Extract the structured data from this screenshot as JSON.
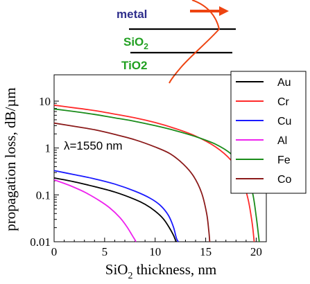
{
  "chart_data": {
    "type": "line",
    "xlabel_main": "SiO",
    "xlabel_sub": "2",
    "xlabel_rest": " thickness, nm",
    "ylabel": "propagation loss, dB/µm",
    "y_scale": "log",
    "xlim": [
      0,
      21
    ],
    "ylim": [
      0.01,
      15
    ],
    "x_ticks": [
      0,
      5,
      10,
      15,
      20
    ],
    "y_ticks": [
      0.01,
      0.1,
      1,
      10
    ],
    "y_tick_labels": [
      "0.01",
      "0.1",
      "1",
      "10"
    ],
    "annotation": "λ=1550 nm",
    "legend_position": "right",
    "series": [
      {
        "name": "Au",
        "color": "#000000",
        "x": [
          0,
          2,
          4,
          6,
          8,
          9,
          10,
          10.8,
          11.4,
          11.8,
          12.0,
          12.1
        ],
        "y": [
          0.23,
          0.19,
          0.15,
          0.115,
          0.08,
          0.063,
          0.045,
          0.031,
          0.02,
          0.014,
          0.011,
          0.01
        ]
      },
      {
        "name": "Cr",
        "color": "#ff2a2a",
        "x": [
          0,
          2,
          4,
          6,
          8,
          10,
          12,
          14,
          16,
          17.5,
          18.5,
          19.2,
          19.6,
          19.8
        ],
        "y": [
          8.2,
          7.2,
          6.3,
          5.3,
          4.4,
          3.5,
          2.6,
          1.8,
          1.05,
          0.55,
          0.25,
          0.08,
          0.025,
          0.01
        ]
      },
      {
        "name": "Cu",
        "color": "#1a1aff",
        "x": [
          0,
          2,
          4,
          6,
          8,
          9.5,
          10.5,
          11.3,
          11.8,
          12.1,
          12.3
        ],
        "y": [
          0.33,
          0.27,
          0.22,
          0.17,
          0.12,
          0.085,
          0.06,
          0.037,
          0.021,
          0.012,
          0.01
        ]
      },
      {
        "name": "Al",
        "color": "#ee22ee",
        "x": [
          0,
          1.5,
          3,
          4.5,
          5.5,
          6.5,
          7.2,
          7.7,
          8.0,
          8.1
        ],
        "y": [
          0.21,
          0.16,
          0.115,
          0.075,
          0.053,
          0.033,
          0.021,
          0.014,
          0.011,
          0.01
        ]
      },
      {
        "name": "Fe",
        "color": "#1a8c1a",
        "x": [
          0,
          2,
          4,
          6,
          8,
          10,
          12,
          14,
          16,
          17.5,
          18.8,
          19.6,
          20.0,
          20.3
        ],
        "y": [
          6.8,
          6.0,
          5.2,
          4.4,
          3.7,
          3.0,
          2.35,
          1.75,
          1.2,
          0.75,
          0.35,
          0.12,
          0.035,
          0.01
        ]
      },
      {
        "name": "Co",
        "color": "#8b1a1a",
        "x": [
          0,
          2,
          4,
          6,
          8,
          10,
          11.5,
          12.8,
          13.8,
          14.6,
          15.1,
          15.3,
          15.4
        ],
        "y": [
          3.4,
          2.9,
          2.45,
          1.95,
          1.5,
          1.05,
          0.75,
          0.45,
          0.25,
          0.11,
          0.04,
          0.018,
          0.01
        ]
      }
    ]
  },
  "inset": {
    "metal_label": "metal",
    "sio2_label": "SiO",
    "sio2_sub": "2",
    "tio2_label": "TiO2",
    "metal_color": "#2e2e8c",
    "sio2_color": "#22a022",
    "tio2_color": "#22a022",
    "arrow_color": "#ee4411"
  }
}
